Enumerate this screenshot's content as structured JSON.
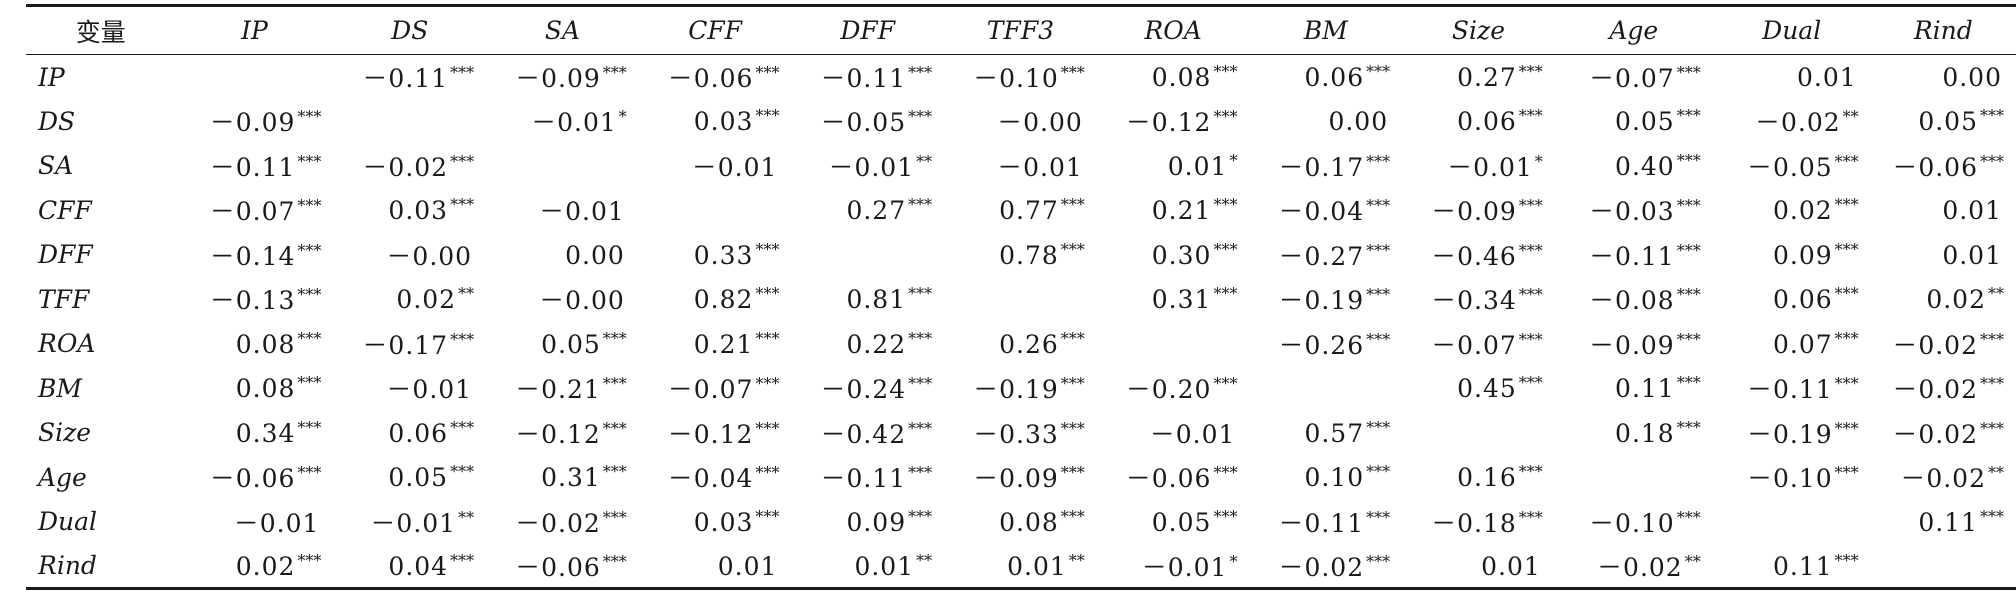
{
  "table": {
    "header": [
      "变量",
      "IP",
      "DS",
      "SA",
      "CFF",
      "DFF",
      "TFF3",
      "ROA",
      "BM",
      "Size",
      "Age",
      "Dual",
      "Rind"
    ],
    "rows": [
      {
        "label": "IP",
        "cells": [
          {
            "v": "",
            "s": ""
          },
          {
            "v": "－0.11",
            "s": "***"
          },
          {
            "v": "－0.09",
            "s": "***"
          },
          {
            "v": "－0.06",
            "s": "***"
          },
          {
            "v": "－0.11",
            "s": "***"
          },
          {
            "v": "－0.10",
            "s": "***"
          },
          {
            "v": "0.08",
            "s": "***"
          },
          {
            "v": "0.06",
            "s": "***"
          },
          {
            "v": "0.27",
            "s": "***"
          },
          {
            "v": "－0.07",
            "s": "***"
          },
          {
            "v": "0.01",
            "s": ""
          },
          {
            "v": "0.00",
            "s": ""
          }
        ]
      },
      {
        "label": "DS",
        "cells": [
          {
            "v": "－0.09",
            "s": "***"
          },
          {
            "v": "",
            "s": ""
          },
          {
            "v": "－0.01",
            "s": "*"
          },
          {
            "v": "0.03",
            "s": "***"
          },
          {
            "v": "－0.05",
            "s": "***"
          },
          {
            "v": "－0.00",
            "s": ""
          },
          {
            "v": "－0.12",
            "s": "***"
          },
          {
            "v": "0.00",
            "s": ""
          },
          {
            "v": "0.06",
            "s": "***"
          },
          {
            "v": "0.05",
            "s": "***"
          },
          {
            "v": "－0.02",
            "s": "**"
          },
          {
            "v": "0.05",
            "s": "***"
          }
        ]
      },
      {
        "label": "SA",
        "cells": [
          {
            "v": "－0.11",
            "s": "***"
          },
          {
            "v": "－0.02",
            "s": "***"
          },
          {
            "v": "",
            "s": ""
          },
          {
            "v": "－0.01",
            "s": ""
          },
          {
            "v": "－0.01",
            "s": "**"
          },
          {
            "v": "－0.01",
            "s": ""
          },
          {
            "v": "0.01",
            "s": "*"
          },
          {
            "v": "－0.17",
            "s": "***"
          },
          {
            "v": "－0.01",
            "s": "*"
          },
          {
            "v": "0.40",
            "s": "***"
          },
          {
            "v": "－0.05",
            "s": "***"
          },
          {
            "v": "－0.06",
            "s": "***"
          }
        ]
      },
      {
        "label": "CFF",
        "cells": [
          {
            "v": "－0.07",
            "s": "***"
          },
          {
            "v": "0.03",
            "s": "***"
          },
          {
            "v": "－0.01",
            "s": ""
          },
          {
            "v": "",
            "s": ""
          },
          {
            "v": "0.27",
            "s": "***"
          },
          {
            "v": "0.77",
            "s": "***"
          },
          {
            "v": "0.21",
            "s": "***"
          },
          {
            "v": "－0.04",
            "s": "***"
          },
          {
            "v": "－0.09",
            "s": "***"
          },
          {
            "v": "－0.03",
            "s": "***"
          },
          {
            "v": "0.02",
            "s": "***"
          },
          {
            "v": "0.01",
            "s": ""
          }
        ]
      },
      {
        "label": "DFF",
        "cells": [
          {
            "v": "－0.14",
            "s": "***"
          },
          {
            "v": "－0.00",
            "s": ""
          },
          {
            "v": "0.00",
            "s": ""
          },
          {
            "v": "0.33",
            "s": "***"
          },
          {
            "v": "",
            "s": ""
          },
          {
            "v": "0.78",
            "s": "***"
          },
          {
            "v": "0.30",
            "s": "***"
          },
          {
            "v": "－0.27",
            "s": "***"
          },
          {
            "v": "－0.46",
            "s": "***"
          },
          {
            "v": "－0.11",
            "s": "***"
          },
          {
            "v": "0.09",
            "s": "***"
          },
          {
            "v": "0.01",
            "s": ""
          }
        ]
      },
      {
        "label": "TFF",
        "cells": [
          {
            "v": "－0.13",
            "s": "***"
          },
          {
            "v": "0.02",
            "s": "**"
          },
          {
            "v": "－0.00",
            "s": ""
          },
          {
            "v": "0.82",
            "s": "***"
          },
          {
            "v": "0.81",
            "s": "***"
          },
          {
            "v": "",
            "s": ""
          },
          {
            "v": "0.31",
            "s": "***"
          },
          {
            "v": "－0.19",
            "s": "***"
          },
          {
            "v": "－0.34",
            "s": "***"
          },
          {
            "v": "－0.08",
            "s": "***"
          },
          {
            "v": "0.06",
            "s": "***"
          },
          {
            "v": "0.02",
            "s": "**"
          }
        ]
      },
      {
        "label": "ROA",
        "cells": [
          {
            "v": "0.08",
            "s": "***"
          },
          {
            "v": "－0.17",
            "s": "***"
          },
          {
            "v": "0.05",
            "s": "***"
          },
          {
            "v": "0.21",
            "s": "***"
          },
          {
            "v": "0.22",
            "s": "***"
          },
          {
            "v": "0.26",
            "s": "***"
          },
          {
            "v": "",
            "s": ""
          },
          {
            "v": "－0.26",
            "s": "***"
          },
          {
            "v": "－0.07",
            "s": "***"
          },
          {
            "v": "－0.09",
            "s": "***"
          },
          {
            "v": "0.07",
            "s": "***"
          },
          {
            "v": "－0.02",
            "s": "***"
          }
        ]
      },
      {
        "label": "BM",
        "cells": [
          {
            "v": "0.08",
            "s": "***"
          },
          {
            "v": "－0.01",
            "s": ""
          },
          {
            "v": "－0.21",
            "s": "***"
          },
          {
            "v": "－0.07",
            "s": "***"
          },
          {
            "v": "－0.24",
            "s": "***"
          },
          {
            "v": "－0.19",
            "s": "***"
          },
          {
            "v": "－0.20",
            "s": "***"
          },
          {
            "v": "",
            "s": ""
          },
          {
            "v": "0.45",
            "s": "***"
          },
          {
            "v": "0.11",
            "s": "***"
          },
          {
            "v": "－0.11",
            "s": "***"
          },
          {
            "v": "－0.02",
            "s": "***"
          }
        ]
      },
      {
        "label": "Size",
        "cells": [
          {
            "v": "0.34",
            "s": "***"
          },
          {
            "v": "0.06",
            "s": "***"
          },
          {
            "v": "－0.12",
            "s": "***"
          },
          {
            "v": "－0.12",
            "s": "***"
          },
          {
            "v": "－0.42",
            "s": "***"
          },
          {
            "v": "－0.33",
            "s": "***"
          },
          {
            "v": "－0.01",
            "s": ""
          },
          {
            "v": "0.57",
            "s": "***"
          },
          {
            "v": "",
            "s": ""
          },
          {
            "v": "0.18",
            "s": "***"
          },
          {
            "v": "－0.19",
            "s": "***"
          },
          {
            "v": "－0.02",
            "s": "***"
          }
        ]
      },
      {
        "label": "Age",
        "cells": [
          {
            "v": "－0.06",
            "s": "***"
          },
          {
            "v": "0.05",
            "s": "***"
          },
          {
            "v": "0.31",
            "s": "***"
          },
          {
            "v": "－0.04",
            "s": "***"
          },
          {
            "v": "－0.11",
            "s": "***"
          },
          {
            "v": "－0.09",
            "s": "***"
          },
          {
            "v": "－0.06",
            "s": "***"
          },
          {
            "v": "0.10",
            "s": "***"
          },
          {
            "v": "0.16",
            "s": "***"
          },
          {
            "v": "",
            "s": ""
          },
          {
            "v": "－0.10",
            "s": "***"
          },
          {
            "v": "－0.02",
            "s": "**"
          }
        ]
      },
      {
        "label": "Dual",
        "cells": [
          {
            "v": "－0.01",
            "s": ""
          },
          {
            "v": "－0.01",
            "s": "**"
          },
          {
            "v": "－0.02",
            "s": "***"
          },
          {
            "v": "0.03",
            "s": "***"
          },
          {
            "v": "0.09",
            "s": "***"
          },
          {
            "v": "0.08",
            "s": "***"
          },
          {
            "v": "0.05",
            "s": "***"
          },
          {
            "v": "－0.11",
            "s": "***"
          },
          {
            "v": "－0.18",
            "s": "***"
          },
          {
            "v": "－0.10",
            "s": "***"
          },
          {
            "v": "",
            "s": ""
          },
          {
            "v": "0.11",
            "s": "***"
          }
        ]
      },
      {
        "label": "Rind",
        "cells": [
          {
            "v": "0.02",
            "s": "***"
          },
          {
            "v": "0.04",
            "s": "***"
          },
          {
            "v": "－0.06",
            "s": "***"
          },
          {
            "v": "0.01",
            "s": ""
          },
          {
            "v": "0.01",
            "s": "**"
          },
          {
            "v": "0.01",
            "s": "**"
          },
          {
            "v": "－0.01",
            "s": "*"
          },
          {
            "v": "－0.02",
            "s": "***"
          },
          {
            "v": "0.01",
            "s": ""
          },
          {
            "v": "－0.02",
            "s": "**"
          },
          {
            "v": "0.11",
            "s": "***"
          },
          {
            "v": "",
            "s": ""
          }
        ]
      }
    ]
  }
}
